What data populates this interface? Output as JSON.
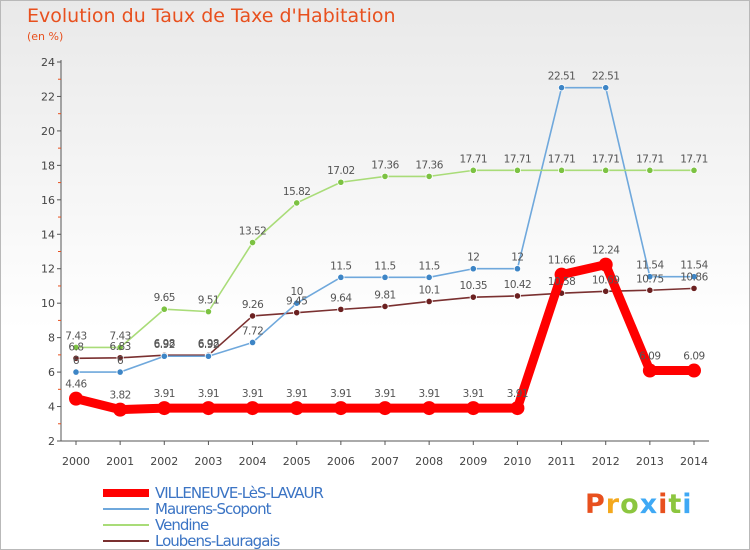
{
  "header": {
    "title": "Evolution du Taux de Taxe d'Habitation",
    "subtitle": "(en %)"
  },
  "logo": {
    "text": "Proxiti",
    "letters": [
      "P",
      "r",
      "o",
      "x",
      "i",
      "t",
      "i"
    ],
    "colors": [
      "#e8501e",
      "#f4a81d",
      "#8cc63f",
      "#3fa9f5",
      "#e8501e",
      "#8cc63f",
      "#3fa9f5"
    ]
  },
  "chart_data": {
    "type": "line",
    "title": "Evolution du Taux de Taxe d'Habitation",
    "ylabel": "(en %)",
    "xlabel": "",
    "x": [
      "2000",
      "2001",
      "2002",
      "2003",
      "2004",
      "2005",
      "2006",
      "2007",
      "2008",
      "2009",
      "2010",
      "2011",
      "2012",
      "2013",
      "2014"
    ],
    "ylim": [
      2,
      24
    ],
    "yticks": [
      2,
      4,
      6,
      8,
      10,
      12,
      14,
      16,
      18,
      20,
      22,
      24
    ],
    "grid": false,
    "legend_position": "bottom-left",
    "series": [
      {
        "name": "VILLENEUVE-LèS-LAVAUR",
        "color": "#ff0000",
        "emphasis": true,
        "values": [
          4.46,
          3.82,
          3.91,
          3.91,
          3.91,
          3.91,
          3.91,
          3.91,
          3.91,
          3.91,
          3.91,
          11.66,
          12.24,
          6.09,
          6.09
        ],
        "labels": [
          "4.46",
          "3.82",
          "3.91",
          "3.91",
          "3.91",
          "3.91",
          "3.91",
          "3.91",
          "3.91",
          "3.91",
          "3.91",
          "11.66",
          "12.24",
          "6.09",
          "6.09"
        ]
      },
      {
        "name": "Maurens-Scopont",
        "color": "#6fa8dc",
        "point_color": "#3d85c6",
        "values": [
          6,
          6,
          6.92,
          6.92,
          7.72,
          10,
          11.5,
          11.5,
          11.5,
          12,
          12,
          22.51,
          22.51,
          11.54,
          11.54
        ],
        "labels": [
          "6",
          "6",
          "6.92",
          "6.92",
          "7.72",
          "10",
          "11.5",
          "11.5",
          "11.5",
          "12",
          "12",
          "22.51",
          "22.51",
          "11.54",
          "11.54"
        ]
      },
      {
        "name": "Vendine",
        "color": "#a9dc78",
        "point_color": "#7cc242",
        "values": [
          7.43,
          7.43,
          9.65,
          9.51,
          13.52,
          15.82,
          17.02,
          17.36,
          17.36,
          17.71,
          17.71,
          17.71,
          17.71,
          17.71,
          17.71
        ],
        "labels": [
          "7.43",
          "7.43",
          "9.65",
          "9.51",
          "13.52",
          "15.82",
          "17.02",
          "17.36",
          "17.36",
          "17.71",
          "17.71",
          "17.71",
          "17.71",
          "17.71",
          "17.71"
        ]
      },
      {
        "name": "Loubens-Lauragais",
        "color": "#7a3030",
        "point_color": "#6b2020",
        "values": [
          6.8,
          6.83,
          6.98,
          6.98,
          9.26,
          9.45,
          9.64,
          9.81,
          10.1,
          10.35,
          10.42,
          10.58,
          10.69,
          10.75,
          10.86
        ],
        "labels": [
          "6.8",
          "6.83",
          "6.98",
          "6.98",
          "9.26",
          "9.45",
          "9.64",
          "9.81",
          "10.1",
          "10.35",
          "10.42",
          "10.58",
          "10.69",
          "10.75",
          "10.86"
        ]
      }
    ]
  }
}
